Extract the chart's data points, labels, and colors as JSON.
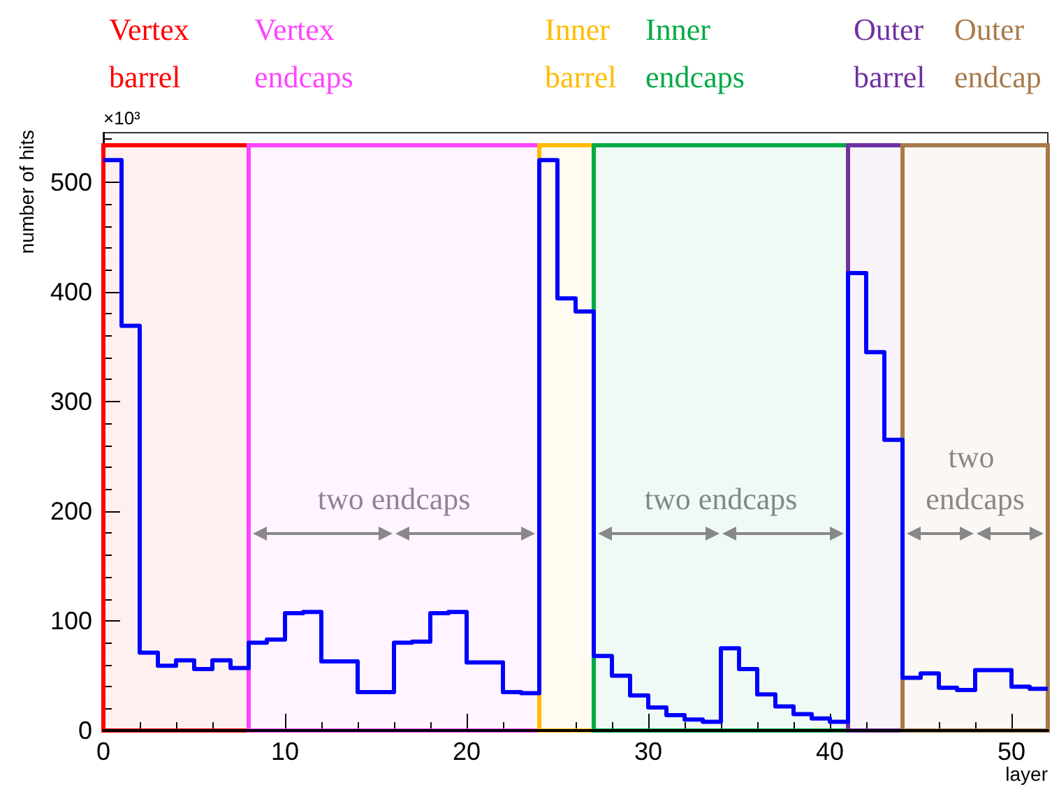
{
  "chart_data": {
    "type": "histogram",
    "xlabel": "layer",
    "ylabel": "number of hits",
    "bins": [
      0,
      1,
      2,
      3,
      4,
      5,
      6,
      7,
      8,
      9,
      10,
      11,
      12,
      13,
      14,
      15,
      16,
      17,
      18,
      19,
      20,
      21,
      22,
      23,
      24,
      25,
      26,
      27,
      28,
      29,
      30,
      31,
      32,
      33,
      34,
      35,
      36,
      37,
      38,
      39,
      40,
      41,
      42,
      43,
      44,
      45,
      46,
      47,
      48,
      49,
      50,
      51,
      52
    ],
    "values": [
      520,
      369,
      71,
      59,
      64,
      56,
      64,
      57,
      80,
      83,
      107,
      108,
      63,
      63,
      35,
      35,
      80,
      81,
      107,
      108,
      62,
      62,
      35,
      34,
      520,
      394,
      382,
      68,
      50,
      32,
      21,
      14,
      10,
      8,
      75,
      56,
      33,
      22,
      15,
      11,
      8,
      417,
      345,
      265,
      48,
      52,
      39,
      37,
      55,
      55,
      40,
      38
    ],
    "color": "#0000ff",
    "xlim": [
      0,
      52
    ],
    "xticks": [
      0,
      10,
      20,
      30,
      40,
      50
    ],
    "ylim": [
      0,
      545
    ],
    "yticks": [
      0,
      100,
      200,
      300,
      400,
      500
    ],
    "grid": false,
    "bands": [
      {
        "axis": "x",
        "from": 0,
        "to": 8,
        "label": "Vertex barrel",
        "color": "#ff0000"
      },
      {
        "axis": "x",
        "from": 8,
        "to": 24,
        "label": "Vertex endcaps",
        "color": "#ff44ff"
      },
      {
        "axis": "x",
        "from": 24,
        "to": 27,
        "label": "Inner barrel",
        "color": "#ffbb00"
      },
      {
        "axis": "x",
        "from": 27,
        "to": 41,
        "label": "Inner endcaps",
        "color": "#00aa44"
      },
      {
        "axis": "x",
        "from": 41,
        "to": 44,
        "label": "Outer barrel",
        "color": "#7030a0"
      },
      {
        "axis": "x",
        "from": 44,
        "to": 52,
        "label": "Outer endcap",
        "color": "#a87a4a"
      }
    ],
    "annotations": [
      "×10³",
      "two endcaps",
      "two endcaps",
      "two endcaps"
    ]
  }
}
